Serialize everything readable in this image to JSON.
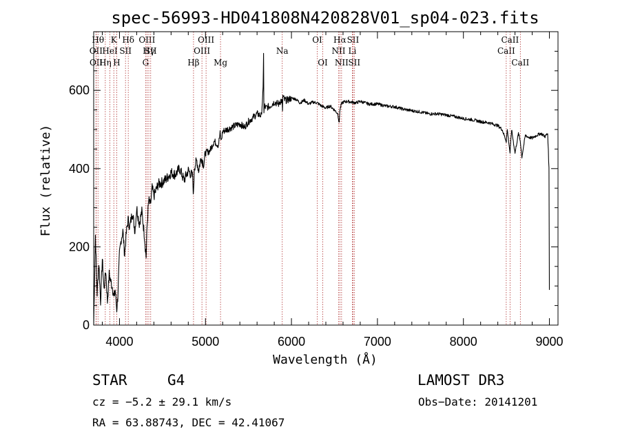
{
  "chart_data": {
    "type": "line",
    "title": "spec-56993-HD041808N420828V01_sp04-023.fits",
    "xlabel": "Wavelength (Å)",
    "ylabel": "Flux (relative)",
    "xlim": [
      3700,
      9100
    ],
    "ylim": [
      0,
      750
    ],
    "xticks": [
      4000,
      5000,
      6000,
      7000,
      8000,
      9000
    ],
    "yticks": [
      0,
      200,
      400,
      600
    ],
    "grid": false,
    "series": [
      {
        "name": "spectrum",
        "x": [
          3700,
          3720,
          3740,
          3760,
          3780,
          3800,
          3820,
          3840,
          3860,
          3880,
          3900,
          3920,
          3935,
          3950,
          3968,
          3980,
          4000,
          4020,
          4040,
          4060,
          4080,
          4100,
          4120,
          4150,
          4180,
          4200,
          4230,
          4260,
          4290,
          4300,
          4310,
          4320,
          4340,
          4360,
          4380,
          4400,
          4450,
          4500,
          4550,
          4600,
          4650,
          4700,
          4750,
          4800,
          4850,
          4861,
          4870,
          4900,
          4920,
          4950,
          4980,
          5000,
          5050,
          5100,
          5150,
          5170,
          5183,
          5200,
          5250,
          5300,
          5350,
          5400,
          5450,
          5500,
          5550,
          5600,
          5650,
          5670,
          5676,
          5680,
          5690,
          5700,
          5750,
          5800,
          5850,
          5880,
          5890,
          5896,
          5900,
          5920,
          5950,
          6000,
          6050,
          6100,
          6150,
          6200,
          6250,
          6300,
          6350,
          6400,
          6450,
          6500,
          6540,
          6555,
          6563,
          6570,
          6580,
          6600,
          6650,
          6700,
          6750,
          6800,
          6900,
          7000,
          7100,
          7200,
          7300,
          7400,
          7500,
          7600,
          7700,
          7800,
          7900,
          8000,
          8100,
          8200,
          8300,
          8400,
          8450,
          8498,
          8510,
          8542,
          8560,
          8600,
          8640,
          8662,
          8680,
          8720,
          8760,
          8800,
          8850,
          8900,
          8950,
          8980,
          8995,
          9000
        ],
        "values": [
          0,
          230,
          80,
          160,
          60,
          170,
          90,
          140,
          60,
          130,
          110,
          95,
          70,
          90,
          40,
          70,
          180,
          220,
          240,
          180,
          235,
          270,
          250,
          290,
          240,
          300,
          260,
          290,
          230,
          200,
          175,
          250,
          320,
          305,
          350,
          330,
          360,
          365,
          375,
          390,
          385,
          400,
          370,
          395,
          380,
          330,
          405,
          420,
          395,
          430,
          410,
          440,
          445,
          470,
          460,
          490,
          470,
          495,
          500,
          505,
          510,
          515,
          505,
          520,
          530,
          540,
          535,
          600,
          700,
          545,
          560,
          555,
          560,
          570,
          565,
          575,
          570,
          550,
          585,
          575,
          575,
          580,
          578,
          568,
          575,
          565,
          570,
          568,
          560,
          555,
          560,
          550,
          540,
          515,
          550,
          555,
          565,
          570,
          572,
          570,
          568,
          572,
          565,
          565,
          560,
          558,
          552,
          548,
          545,
          540,
          540,
          537,
          533,
          528,
          525,
          520,
          517,
          510,
          500,
          470,
          500,
          440,
          500,
          440,
          490,
          470,
          430,
          485,
          480,
          478,
          485,
          490,
          482,
          490,
          400,
          90
        ]
      }
    ],
    "line_markers": [
      {
        "name": "OII",
        "x": 3727,
        "row": 2
      },
      {
        "name": "OII",
        "x": 3729,
        "row": 3
      },
      {
        "name": "Hθ",
        "x": 3750,
        "row": 1
      },
      {
        "name": "Hη",
        "x": 3835,
        "row": 3
      },
      {
        "name": "HeI",
        "x": 3889,
        "row": 2
      },
      {
        "name": "K",
        "x": 3934,
        "row": 1
      },
      {
        "name": "H",
        "x": 3968,
        "row": 3
      },
      {
        "name": "SII",
        "x": 4070,
        "row": 2
      },
      {
        "name": "Hδ",
        "x": 4102,
        "row": 1
      },
      {
        "name": "G",
        "x": 4304,
        "row": 3
      },
      {
        "name": "OIII",
        "x": 4320,
        "row": 1
      },
      {
        "name": "Hγ",
        "x": 4341,
        "row": 2
      },
      {
        "name": "SII",
        "x": 4363,
        "row": 2
      },
      {
        "name": "Hβ",
        "x": 4861,
        "row": 3
      },
      {
        "name": "OIII",
        "x": 4959,
        "row": 2
      },
      {
        "name": "OIII",
        "x": 5007,
        "row": 1
      },
      {
        "name": "Mg",
        "x": 5175,
        "row": 3
      },
      {
        "name": "Na",
        "x": 5893,
        "row": 2
      },
      {
        "name": "OI",
        "x": 6300,
        "row": 1
      },
      {
        "name": "OI",
        "x": 6364,
        "row": 3
      },
      {
        "name": "NII",
        "x": 6548,
        "row": 2
      },
      {
        "name": "Hα",
        "x": 6563,
        "row": 1
      },
      {
        "name": "NII",
        "x": 6583,
        "row": 3
      },
      {
        "name": "SII",
        "x": 6716,
        "row": 1
      },
      {
        "name": "Li",
        "x": 6708,
        "row": 2
      },
      {
        "name": "SII",
        "x": 6731,
        "row": 3
      },
      {
        "name": "CaII",
        "x": 8498,
        "row": 2
      },
      {
        "name": "CaII",
        "x": 8542,
        "row": 1
      },
      {
        "name": "CaII",
        "x": 8662,
        "row": 3
      }
    ]
  },
  "info": {
    "object_class": "STAR",
    "subclass": "G4",
    "survey": "LAMOST DR3",
    "cz": "cz = −5.2 ± 29.1 km/s",
    "obs_date": "Obs−Date: 20141201",
    "coords": "RA =  63.88743, DEC =  42.41067"
  },
  "colors": {
    "spectrum": "#000000",
    "marker": "#b03030",
    "axis": "#000000"
  }
}
